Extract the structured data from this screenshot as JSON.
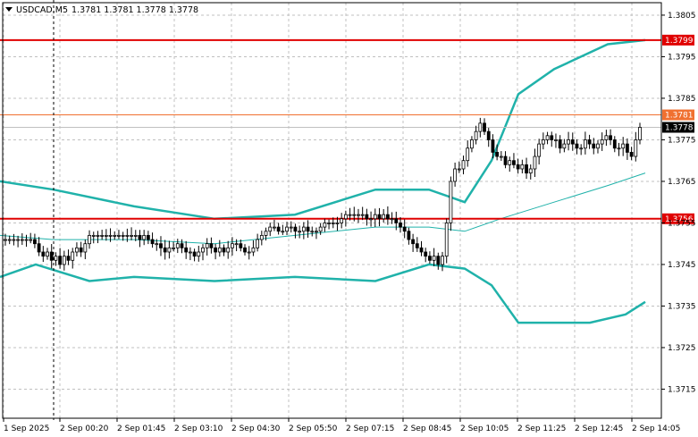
{
  "header": {
    "symbol": "USDCAD",
    "timeframe": "M5",
    "ohlc": "1.3781 1.3781 1.3778 1.3778"
  },
  "colors": {
    "background": "#ffffff",
    "grid": "#c0c0c0",
    "candle": "#000000",
    "bollinger": "#20b2aa",
    "level_red": "#e00000",
    "level_orange": "#f07030",
    "current_price": "#000000"
  },
  "chart_data": {
    "type": "candlestick",
    "instrument": "USDCAD",
    "timeframe": "M5",
    "grid": true,
    "ylim": [
      1.3708,
      1.3808
    ],
    "y_ticks": [
      "1.3805",
      "1.3795",
      "1.3785",
      "1.3775",
      "1.3765",
      "1.3755",
      "1.3745",
      "1.3735",
      "1.3725",
      "1.3715"
    ],
    "x_ticks": [
      "1 Sep 2025",
      "2 Sep 00:20",
      "2 Sep 01:45",
      "2 Sep 03:10",
      "2 Sep 04:30",
      "2 Sep 05:50",
      "2 Sep 07:15",
      "2 Sep 08:45",
      "2 Sep 10:05",
      "2 Sep 11:25",
      "2 Sep 12:45",
      "2 Sep 14:05"
    ],
    "levels": [
      {
        "label": "1.3799",
        "value": 1.3799,
        "color": "#e00000"
      },
      {
        "label": "1.3781",
        "value": 1.3781,
        "color": "#f07030"
      },
      {
        "label": "1.3756",
        "value": 1.3756,
        "color": "#e00000"
      }
    ],
    "current_price": {
      "label": "1.3778",
      "value": 1.3778
    },
    "candles_close": [
      1.3751,
      1.3751,
      1.3751,
      1.3751,
      1.3751,
      1.3751,
      1.3751,
      1.375,
      1.3748,
      1.3747,
      1.3748,
      1.3746,
      1.3747,
      1.3745,
      1.3747,
      1.3746,
      1.3748,
      1.3749,
      1.3748,
      1.375,
      1.3752,
      1.3752,
      1.3752,
      1.3752,
      1.3752,
      1.3752,
      1.3752,
      1.3752,
      1.3752,
      1.3752,
      1.3752,
      1.3752,
      1.3751,
      1.3752,
      1.3751,
      1.375,
      1.375,
      1.3749,
      1.3748,
      1.3749,
      1.3749,
      1.375,
      1.3749,
      1.3748,
      1.3748,
      1.3747,
      1.3748,
      1.3749,
      1.375,
      1.3749,
      1.3748,
      1.3749,
      1.3748,
      1.3749,
      1.375,
      1.375,
      1.3749,
      1.3748,
      1.3748,
      1.3749,
      1.3751,
      1.3752,
      1.3753,
      1.3754,
      1.3754,
      1.3753,
      1.3753,
      1.3754,
      1.3754,
      1.3753,
      1.3753,
      1.3754,
      1.3753,
      1.3753,
      1.3753,
      1.3754,
      1.3755,
      1.3755,
      1.3755,
      1.3755,
      1.3756,
      1.3757,
      1.3757,
      1.3757,
      1.3757,
      1.3757,
      1.3756,
      1.3756,
      1.3757,
      1.3756,
      1.3757,
      1.3756,
      1.3756,
      1.3755,
      1.3754,
      1.3753,
      1.3751,
      1.375,
      1.3749,
      1.3748,
      1.3747,
      1.3746,
      1.3747,
      1.3745,
      1.3747,
      1.3755,
      1.3765,
      1.3768,
      1.3768,
      1.377,
      1.3773,
      1.3775,
      1.3777,
      1.3779,
      1.3777,
      1.3775,
      1.3772,
      1.3771,
      1.3771,
      1.3769,
      1.377,
      1.3769,
      1.3768,
      1.3769,
      1.3767,
      1.3768,
      1.3771,
      1.3774,
      1.3775,
      1.3776,
      1.3775,
      1.3775,
      1.3773,
      1.3774,
      1.3775,
      1.3774,
      1.3773,
      1.3773,
      1.3775,
      1.3774,
      1.3773,
      1.3774,
      1.3775,
      1.3776,
      1.3775,
      1.3773,
      1.3773,
      1.3774,
      1.3772,
      1.3771,
      1.3775,
      1.3778
    ],
    "bollinger": {
      "upper": [
        [
          0,
          1.3765
        ],
        [
          60,
          1.3763
        ],
        [
          150,
          1.3759
        ],
        [
          240,
          1.3756
        ],
        [
          330,
          1.3757
        ],
        [
          420,
          1.3763
        ],
        [
          480,
          1.3763
        ],
        [
          520,
          1.376
        ],
        [
          550,
          1.377
        ],
        [
          580,
          1.3786
        ],
        [
          620,
          1.3792
        ],
        [
          680,
          1.3798
        ],
        [
          722,
          1.3799
        ]
      ],
      "middle": [
        [
          0,
          1.3752
        ],
        [
          60,
          1.3751
        ],
        [
          150,
          1.3751
        ],
        [
          240,
          1.375
        ],
        [
          330,
          1.3752
        ],
        [
          420,
          1.3754
        ],
        [
          480,
          1.3754
        ],
        [
          520,
          1.3753
        ],
        [
          560,
          1.3756
        ],
        [
          620,
          1.376
        ],
        [
          680,
          1.3764
        ],
        [
          722,
          1.3767
        ]
      ],
      "lower": [
        [
          0,
          1.3742
        ],
        [
          40,
          1.3745
        ],
        [
          100,
          1.3741
        ],
        [
          150,
          1.3742
        ],
        [
          240,
          1.3741
        ],
        [
          330,
          1.3742
        ],
        [
          420,
          1.3741
        ],
        [
          480,
          1.3745
        ],
        [
          520,
          1.3744
        ],
        [
          550,
          1.374
        ],
        [
          580,
          1.3731
        ],
        [
          620,
          1.3731
        ],
        [
          660,
          1.3731
        ],
        [
          700,
          1.3733
        ],
        [
          722,
          1.3736
        ]
      ]
    }
  }
}
